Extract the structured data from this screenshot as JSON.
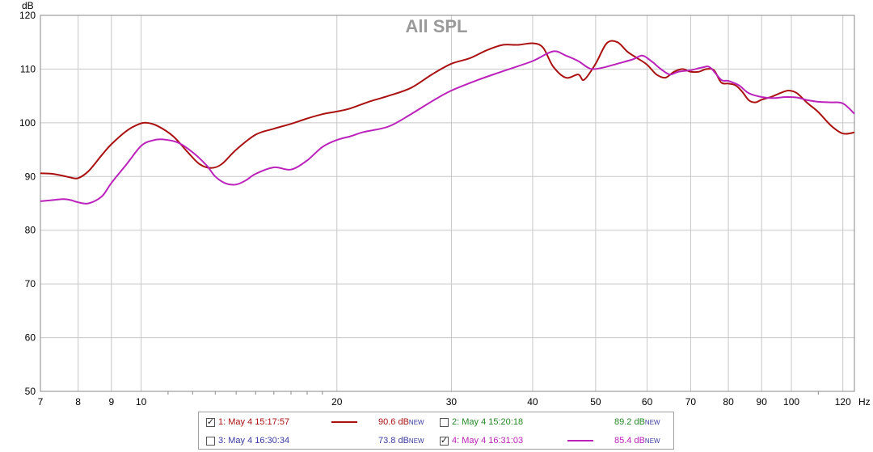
{
  "chart_data": {
    "type": "line",
    "title": "All SPL",
    "ylabel": "dB",
    "xlabel": "Hz",
    "x_scale": "log",
    "xlim": [
      7,
      125
    ],
    "ylim": [
      50,
      120
    ],
    "x_ticks": [
      7,
      8,
      9,
      10,
      20,
      30,
      40,
      50,
      60,
      70,
      80,
      90,
      100,
      120
    ],
    "x_tick_labels": [
      "7",
      "8",
      "9",
      "10",
      "20",
      "30",
      "40",
      "50",
      "60",
      "70",
      "80",
      "90",
      "100",
      "120"
    ],
    "y_ticks": [
      50,
      60,
      70,
      80,
      90,
      100,
      110,
      120
    ],
    "y_tick_labels": [
      "50",
      "60",
      "70",
      "80",
      "90",
      "100",
      "110",
      "120"
    ],
    "x_minor_ticks": [
      11,
      12,
      13,
      14,
      15,
      16,
      17,
      18,
      19,
      110
    ],
    "grid": true,
    "series": [
      {
        "name": "1: May 4 15:17:57",
        "color": "#aa1111",
        "x": [
          7,
          7.3,
          7.6,
          7.8,
          8.0,
          8.3,
          8.7,
          9.0,
          9.5,
          9.9,
          10.2,
          10.6,
          11.2,
          11.8,
          12.3,
          12.8,
          13.3,
          14.0,
          15.0,
          16.0,
          17.0,
          18.0,
          19.0,
          20.0,
          21.0,
          22.5,
          24.0,
          26.0,
          28.0,
          30.0,
          32.0,
          34.0,
          36.0,
          38.0,
          40.0,
          41.5,
          43.0,
          45.0,
          47.0,
          48.0,
          50.0,
          52.0,
          54.0,
          56.0,
          58.0,
          60.0,
          62.0,
          64.0,
          66.0,
          68.0,
          70.0,
          72.0,
          74.0,
          76.0,
          78.0,
          80.0,
          82.0,
          84.0,
          86.0,
          88.0,
          90.0,
          93.0,
          96.0,
          99.0,
          102.0,
          106.0,
          110.0,
          115.0,
          120.0,
          125.0
        ],
        "y": [
          90.6,
          90.5,
          90.1,
          89.8,
          89.7,
          91.0,
          94.0,
          96.0,
          98.5,
          99.7,
          100.0,
          99.4,
          97.5,
          94.5,
          92.3,
          91.6,
          92.3,
          95.0,
          97.8,
          98.9,
          99.8,
          100.8,
          101.6,
          102.1,
          102.7,
          104.0,
          105.0,
          106.5,
          109.0,
          111.0,
          112.0,
          113.5,
          114.5,
          114.5,
          114.8,
          114.0,
          110.5,
          108.4,
          109.0,
          108.0,
          111.0,
          114.8,
          115.0,
          113.2,
          112.0,
          110.8,
          109.0,
          108.4,
          109.5,
          110.0,
          109.5,
          109.5,
          110.0,
          109.8,
          107.5,
          107.3,
          107.0,
          105.8,
          104.2,
          103.8,
          104.3,
          104.8,
          105.5,
          106.0,
          105.5,
          103.6,
          102.0,
          99.5,
          98.0,
          98.2
        ]
      },
      {
        "name": "4: May 4 16:31:03",
        "color": "#bb22bb",
        "x": [
          7,
          7.3,
          7.6,
          7.8,
          8.0,
          8.3,
          8.7,
          9.0,
          9.5,
          10.0,
          10.4,
          10.8,
          11.4,
          12.0,
          12.6,
          13.0,
          13.5,
          14.0,
          14.5,
          15.0,
          16.0,
          17.0,
          18.0,
          19.0,
          20.0,
          21.0,
          22.0,
          24.0,
          26.0,
          28.0,
          30.0,
          33.0,
          36.0,
          40.0,
          43.0,
          45.0,
          47.0,
          49.0,
          51.0,
          54.0,
          57.0,
          59.0,
          61.0,
          63.0,
          65.0,
          67.0,
          70.0,
          73.0,
          75.0,
          78.0,
          80.0,
          83.0,
          86.0,
          90.0,
          94.0,
          98.0,
          102.0,
          106.0,
          110.0,
          115.0,
          120.0,
          125.0
        ],
        "y": [
          85.4,
          85.6,
          85.8,
          85.6,
          85.2,
          85.0,
          86.3,
          88.8,
          92.3,
          95.7,
          96.7,
          96.9,
          96.3,
          94.5,
          92.1,
          90.0,
          88.7,
          88.5,
          89.3,
          90.5,
          91.7,
          91.3,
          93.0,
          95.5,
          96.8,
          97.5,
          98.3,
          99.3,
          101.6,
          104.0,
          106.0,
          108.0,
          109.6,
          111.5,
          113.3,
          112.5,
          111.5,
          110.1,
          110.2,
          111.0,
          111.8,
          112.5,
          111.4,
          110.0,
          109.0,
          109.5,
          109.8,
          110.3,
          110.3,
          108.0,
          107.8,
          107.0,
          105.5,
          104.8,
          104.6,
          104.8,
          104.7,
          104.2,
          103.9,
          103.8,
          103.6,
          101.7
        ]
      }
    ]
  },
  "legend": {
    "items": [
      {
        "label": "1: May 4 15:17:57",
        "checked": true,
        "check_glyph": "✓",
        "value": "90.6 dB",
        "badge": "NEW",
        "color": "#aa1111",
        "show_swatch": true
      },
      {
        "label": "2: May 4 15:20:18",
        "checked": false,
        "check_glyph": "",
        "value": "89.2 dB",
        "badge": "NEW",
        "color": "#228822",
        "show_swatch": false
      },
      {
        "label": "3: May 4 16:30:34",
        "checked": false,
        "check_glyph": "",
        "value": "73.8 dB",
        "badge": "NEW",
        "color": "#3a3aa0",
        "show_swatch": false
      },
      {
        "label": "4: May 4 16:31:03",
        "checked": true,
        "check_glyph": "✓",
        "value": "85.4 dB",
        "badge": "NEW",
        "color": "#bb22bb",
        "show_swatch": true
      }
    ]
  }
}
